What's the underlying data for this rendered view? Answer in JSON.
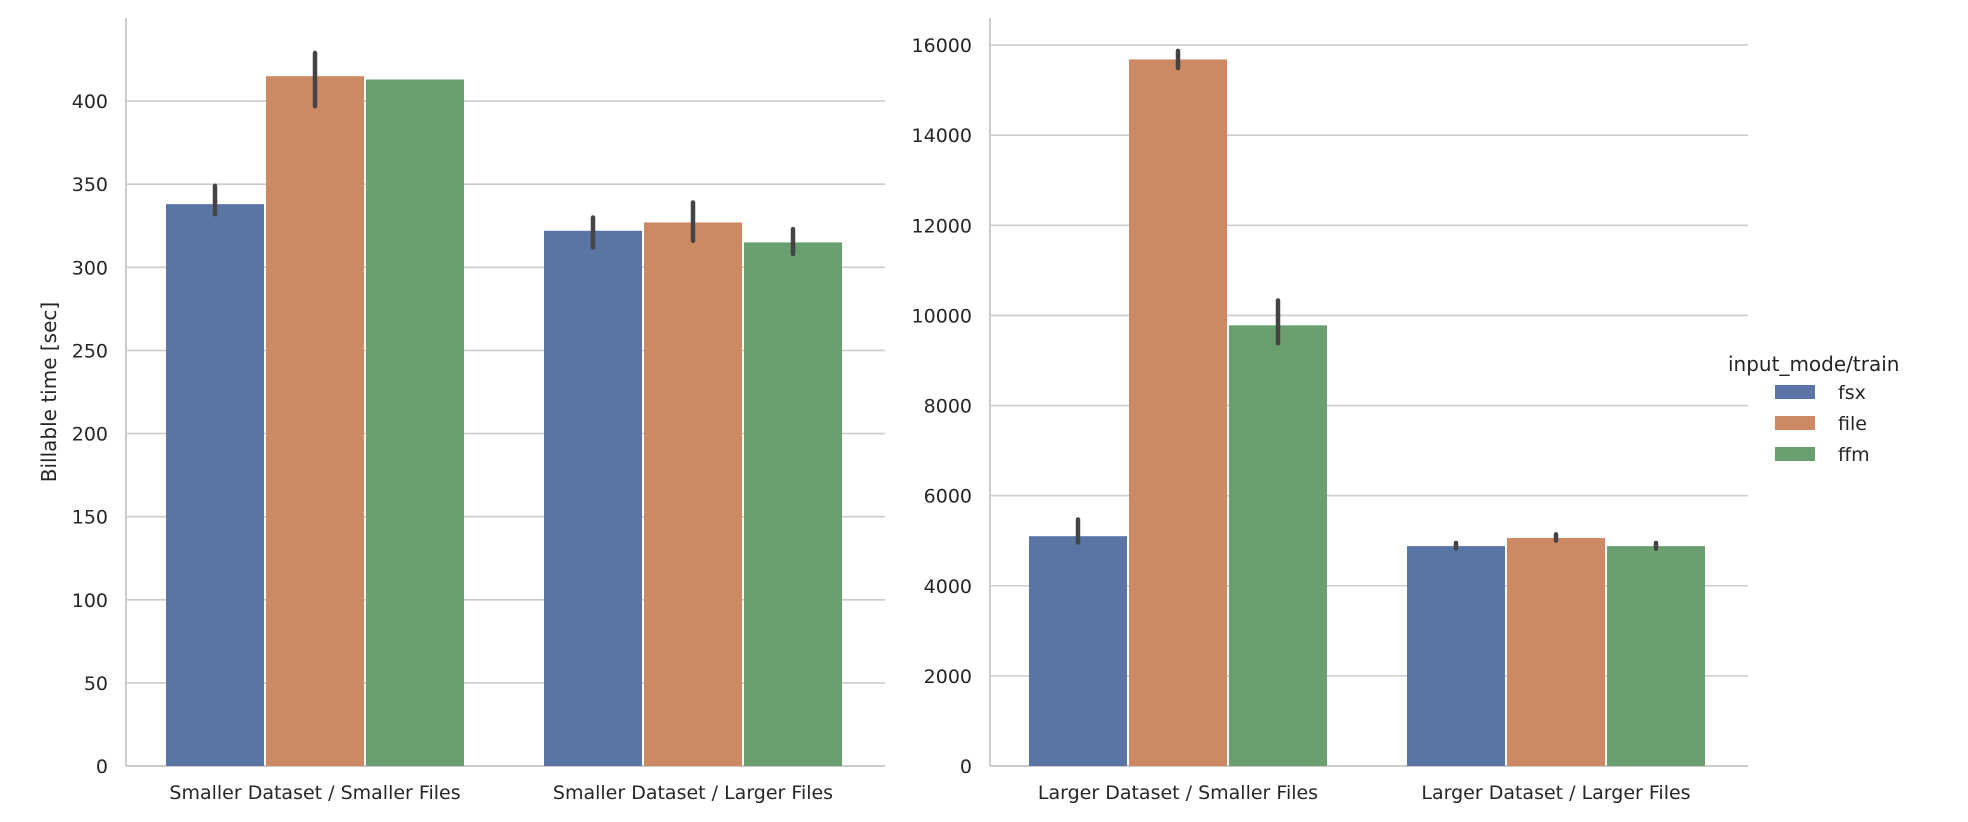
{
  "chart_data": [
    {
      "type": "bar",
      "categories": [
        "Smaller Dataset / Smaller Files",
        "Smaller Dataset / Larger Files"
      ],
      "series": [
        {
          "name": "fsx",
          "values": [
            338,
            322
          ],
          "err": [
            [
              332,
              349
            ],
            [
              312,
              330
            ]
          ]
        },
        {
          "name": "file",
          "values": [
            415,
            327
          ],
          "err": [
            [
              397,
              429
            ],
            [
              316,
              339
            ]
          ]
        },
        {
          "name": "ffm",
          "values": [
            413,
            315
          ],
          "err": [
            null,
            [
              308,
              323
            ]
          ]
        }
      ],
      "ylabel": "Billable time [sec]",
      "xlabel": "",
      "ylim": [
        0,
        450
      ],
      "yticks": [
        0,
        50,
        100,
        150,
        200,
        250,
        300,
        350,
        400
      ],
      "grid": "horizontal"
    },
    {
      "type": "bar",
      "categories": [
        "Larger Dataset / Smaller Files",
        "Larger Dataset / Larger Files"
      ],
      "series": [
        {
          "name": "fsx",
          "values": [
            5100,
            4880
          ],
          "err": [
            [
              4960,
              5470
            ],
            [
              4830,
              4950
            ]
          ]
        },
        {
          "name": "file",
          "values": [
            15680,
            5060
          ],
          "err": [
            [
              15490,
              15870
            ],
            [
              5000,
              5140
            ]
          ]
        },
        {
          "name": "ffm",
          "values": [
            9780,
            4880
          ],
          "err": [
            [
              9380,
              10330
            ],
            [
              4820,
              4950
            ]
          ]
        }
      ],
      "ylabel": "",
      "xlabel": "",
      "ylim": [
        0,
        16600
      ],
      "yticks": [
        0,
        2000,
        4000,
        6000,
        8000,
        10000,
        12000,
        14000,
        16000
      ],
      "grid": "horizontal"
    }
  ],
  "legend": {
    "title": "input_mode/train",
    "placement": "right",
    "entries": [
      "fsx",
      "file",
      "ffm"
    ]
  },
  "colors": {
    "fsx": "#5975a4",
    "file": "#cc8963",
    "ffm": "#6a9f6f",
    "grid": "#cccccc",
    "axis": "#cccccc",
    "errbar": "#444444"
  }
}
